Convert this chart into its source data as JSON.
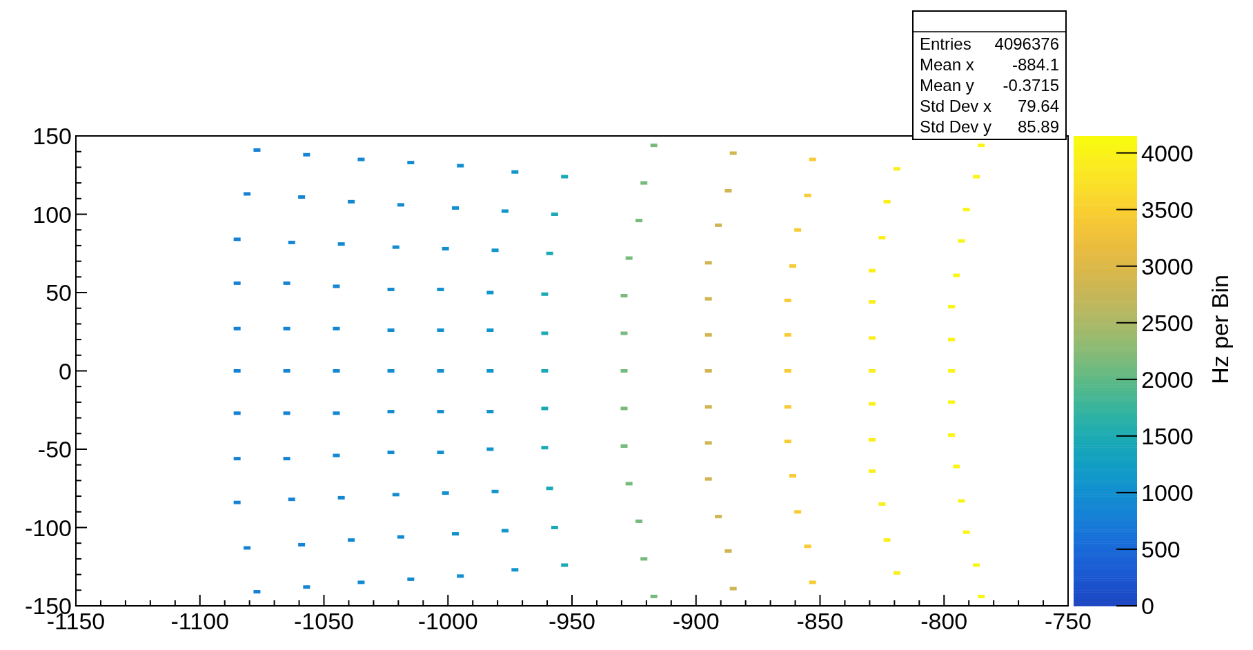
{
  "chart_data": {
    "type": "scatter",
    "marker": "square",
    "clabel": "Hz per Bin",
    "clim": [
      0,
      4150
    ],
    "cticks": [
      0,
      500,
      1000,
      1500,
      2000,
      2500,
      3000,
      3500,
      4000
    ],
    "xlim": [
      -1150,
      -750
    ],
    "xticks": [
      -1150,
      {
        "value": -1140,
        "label": null
      },
      {
        "value": -1130,
        "label": null
      },
      {
        "value": -1120,
        "label": null
      },
      {
        "value": -1110,
        "label": null
      },
      -1100,
      {
        "value": -1090,
        "label": null
      },
      {
        "value": -1080,
        "label": null
      },
      {
        "value": -1070,
        "label": null
      },
      {
        "value": -1060,
        "label": null
      },
      -1050,
      {
        "value": -1040,
        "label": null
      },
      {
        "value": -1030,
        "label": null
      },
      {
        "value": -1020,
        "label": null
      },
      {
        "value": -1010,
        "label": null
      },
      -1000,
      {
        "value": -990,
        "label": null
      },
      {
        "value": -980,
        "label": null
      },
      {
        "value": -970,
        "label": null
      },
      {
        "value": -960,
        "label": null
      },
      -950,
      {
        "value": -940,
        "label": null
      },
      {
        "value": -930,
        "label": null
      },
      {
        "value": -920,
        "label": null
      },
      {
        "value": -910,
        "label": null
      },
      -900,
      {
        "value": -890,
        "label": null
      },
      {
        "value": -880,
        "label": null
      },
      {
        "value": -870,
        "label": null
      },
      {
        "value": -860,
        "label": null
      },
      -850,
      {
        "value": -840,
        "label": null
      },
      {
        "value": -830,
        "label": null
      },
      {
        "value": -820,
        "label": null
      },
      {
        "value": -810,
        "label": null
      },
      -800,
      {
        "value": -790,
        "label": null
      },
      {
        "value": -780,
        "label": null
      },
      {
        "value": -770,
        "label": null
      },
      {
        "value": -760,
        "label": null
      },
      -750
    ],
    "ylim": [
      -150,
      150
    ],
    "yticks": [
      -150,
      {
        "value": -140,
        "label": null
      },
      {
        "value": -130,
        "label": null
      },
      {
        "value": -120,
        "label": null
      },
      {
        "value": -110,
        "label": null
      },
      -100,
      {
        "value": -90,
        "label": null
      },
      {
        "value": -80,
        "label": null
      },
      {
        "value": -70,
        "label": null
      },
      {
        "value": -60,
        "label": null
      },
      -50,
      {
        "value": -40,
        "label": null
      },
      {
        "value": -30,
        "label": null
      },
      {
        "value": -20,
        "label": null
      },
      {
        "value": -10,
        "label": null
      },
      0,
      {
        "value": 10,
        "label": null
      },
      {
        "value": 20,
        "label": null
      },
      {
        "value": 30,
        "label": null
      },
      {
        "value": 40,
        "label": null
      },
      50,
      {
        "value": 60,
        "label": null
      },
      {
        "value": 70,
        "label": null
      },
      {
        "value": 80,
        "label": null
      },
      {
        "value": 90,
        "label": null
      },
      100,
      {
        "value": 110,
        "label": null
      },
      {
        "value": 120,
        "label": null
      },
      {
        "value": 130,
        "label": null
      },
      {
        "value": 140,
        "label": null
      },
      150
    ],
    "annotations": [
      "Entries 4096376",
      "Mean x -884.1",
      "Mean y -0.3715",
      "Std Dev x 79.64",
      "Std Dev y 85.89"
    ],
    "x": [
      -1077,
      -1081,
      -1085,
      -1085,
      -1085,
      -1085,
      -1085,
      -1085,
      -1085,
      -1081,
      -1077,
      -1057,
      -1059,
      -1063,
      -1065,
      -1065,
      -1065,
      -1065,
      -1065,
      -1063,
      -1059,
      -1057,
      -1035,
      -1039,
      -1043,
      -1045,
      -1045,
      -1045,
      -1045,
      -1045,
      -1043,
      -1039,
      -1035,
      -1015,
      -1019,
      -1021,
      -1023,
      -1023,
      -1023,
      -1023,
      -1023,
      -1021,
      -1019,
      -1015,
      -995,
      -997,
      -1001,
      -1003,
      -1003,
      -1003,
      -1003,
      -1003,
      -1001,
      -997,
      -995,
      -973,
      -977,
      -981,
      -983,
      -983,
      -983,
      -983,
      -983,
      -981,
      -977,
      -973,
      -953,
      -957,
      -959,
      -961,
      -961,
      -961,
      -961,
      -961,
      -959,
      -957,
      -953,
      -917,
      -921,
      -923,
      -927,
      -929,
      -929,
      -929,
      -929,
      -929,
      -927,
      -923,
      -921,
      -917,
      -885,
      -887,
      -891,
      -895,
      -895,
      -895,
      -895,
      -895,
      -895,
      -895,
      -891,
      -887,
      -885,
      -853,
      -855,
      -859,
      -861,
      -863,
      -863,
      -863,
      -863,
      -863,
      -861,
      -859,
      -855,
      -853,
      -819,
      -823,
      -825,
      -829,
      -829,
      -829,
      -829,
      -829,
      -829,
      -829,
      -825,
      -823,
      -819,
      -785,
      -787,
      -791,
      -793,
      -795,
      -797,
      -797,
      -797,
      -797,
      -797,
      -795,
      -793,
      -791,
      -787,
      -785
    ],
    "values": [
      141,
      113,
      84,
      56,
      27,
      0,
      -27,
      -56,
      -84,
      -113,
      -141,
      138,
      111,
      82,
      56,
      27,
      0,
      -27,
      -56,
      -82,
      -111,
      -138,
      135,
      108,
      81,
      54,
      27,
      0,
      -27,
      -54,
      -81,
      -108,
      -135,
      133,
      106,
      79,
      52,
      26,
      0,
      -26,
      -52,
      -79,
      -106,
      -133,
      131,
      104,
      78,
      52,
      26,
      0,
      -26,
      -52,
      -78,
      -104,
      -131,
      127,
      102,
      77,
      50,
      26,
      0,
      -26,
      -50,
      -77,
      -102,
      -127,
      124,
      100,
      75,
      49,
      24,
      0,
      -24,
      -49,
      -75,
      -100,
      -124,
      144,
      120,
      96,
      72,
      48,
      24,
      0,
      -24,
      -48,
      -72,
      -96,
      -120,
      -144,
      139,
      115,
      93,
      69,
      46,
      23,
      0,
      -23,
      -46,
      -69,
      -93,
      -115,
      -139,
      135,
      112,
      90,
      67,
      45,
      23,
      0,
      -23,
      -45,
      -67,
      -90,
      -112,
      -135,
      129,
      108,
      85,
      64,
      44,
      21,
      0,
      -21,
      -44,
      -64,
      -85,
      -108,
      -129,
      144,
      124,
      103,
      83,
      61,
      41,
      20,
      0,
      -20,
      -41,
      -61,
      -83,
      -103,
      -124,
      -144
    ],
    "cvalues": [
      800,
      800,
      800,
      800,
      800,
      800,
      800,
      800,
      800,
      800,
      800,
      850,
      850,
      850,
      850,
      850,
      850,
      850,
      850,
      850,
      850,
      850,
      900,
      900,
      900,
      900,
      900,
      900,
      900,
      900,
      900,
      900,
      900,
      950,
      950,
      950,
      950,
      950,
      950,
      950,
      950,
      950,
      950,
      950,
      1000,
      1000,
      1000,
      1000,
      1000,
      1000,
      1000,
      1000,
      1000,
      1000,
      1000,
      1100,
      1100,
      1100,
      1100,
      1100,
      1100,
      1100,
      1100,
      1100,
      1100,
      1100,
      1450,
      1450,
      1450,
      1450,
      1450,
      1450,
      1450,
      1450,
      1450,
      1450,
      1450,
      2150,
      2150,
      2150,
      2150,
      2150,
      2150,
      2150,
      2150,
      2150,
      2150,
      2150,
      2150,
      2150,
      2850,
      2850,
      2850,
      2850,
      2850,
      2850,
      2850,
      2850,
      2850,
      2850,
      2850,
      2850,
      2850,
      3450,
      3450,
      3450,
      3450,
      3450,
      3450,
      3450,
      3450,
      3450,
      3450,
      3450,
      3450,
      3450,
      3950,
      3950,
      3950,
      3950,
      3950,
      3950,
      3950,
      3950,
      3950,
      3950,
      3950,
      3950,
      3950,
      4050,
      4050,
      4050,
      4050,
      4050,
      4050,
      4050,
      4050,
      4050,
      4050,
      4050,
      4050,
      4050,
      4050,
      4050
    ]
  }
}
